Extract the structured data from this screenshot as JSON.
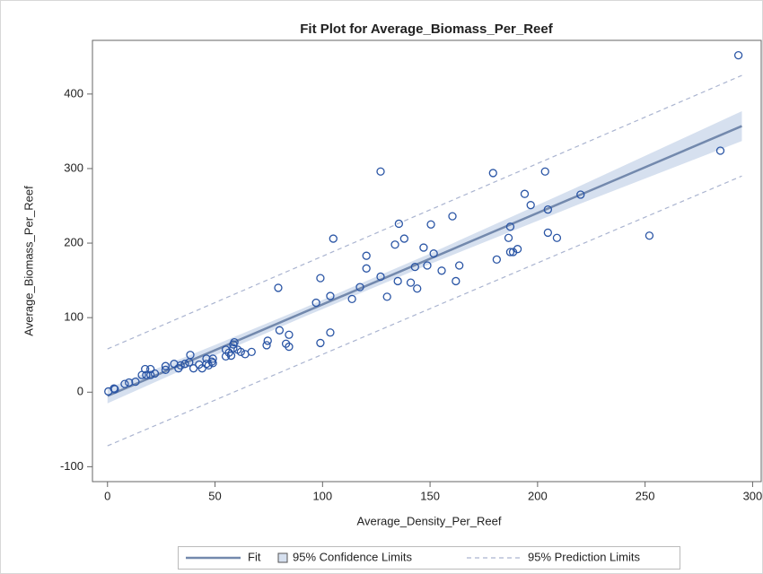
{
  "chart_data": {
    "type": "scatter",
    "title": "Fit Plot for Average_Biomass_Per_Reef",
    "x_label": "Average_Density_Per_Reef",
    "y_label": "Average_Biomass_Per_Reef",
    "xlim": [
      -7,
      304
    ],
    "ylim": [
      -120,
      472
    ],
    "xticks": [
      0,
      50,
      100,
      150,
      200,
      250,
      300
    ],
    "yticks": [
      -100,
      0,
      100,
      200,
      300,
      400
    ],
    "points": {
      "color": "#2a55a5",
      "x": [
        0.4,
        3,
        3.4,
        8,
        10,
        13,
        16,
        17.5,
        20,
        18,
        20,
        22,
        27,
        27,
        31,
        33,
        34,
        36,
        38,
        38.5,
        40,
        42.6,
        44,
        46,
        46,
        47,
        48.5,
        49,
        49,
        55,
        55,
        56.5,
        57.5,
        58.5,
        58.5,
        59,
        60.5,
        62,
        64,
        67,
        74,
        74.5,
        79.4,
        80,
        83,
        84.4,
        84.4,
        97,
        99,
        99,
        103.6,
        103.6,
        105,
        113.7,
        117.4,
        120.4,
        120.4,
        127,
        127,
        130,
        133.7,
        135.5,
        138,
        135,
        141,
        144,
        143,
        147,
        148.7,
        150.4,
        151.7,
        155.4,
        160.4,
        162,
        163.6,
        179.3,
        181,
        186.5,
        187.3,
        187.3,
        188.6,
        190.7,
        194,
        196.8,
        203.5,
        204.8,
        204.8,
        209,
        220,
        252,
        285,
        293.4
      ],
      "y": [
        1,
        5,
        4,
        11,
        13,
        14,
        23,
        31,
        31,
        23,
        23,
        25,
        30,
        35,
        38,
        32,
        36,
        38,
        40,
        50,
        32,
        37,
        32,
        38,
        45,
        36,
        41,
        45,
        39,
        57,
        48,
        53,
        49,
        64,
        59,
        67,
        57,
        54,
        51,
        54,
        63,
        69,
        140,
        83,
        65,
        77,
        61,
        120,
        153,
        66,
        129,
        80,
        206,
        125,
        141,
        166,
        183,
        296,
        155,
        128,
        198,
        226,
        206,
        149,
        147,
        139,
        168,
        194,
        170,
        225,
        186,
        163,
        236,
        149,
        170,
        294,
        178,
        207,
        222,
        188,
        188,
        192,
        266,
        251,
        296,
        245,
        214,
        207,
        265,
        210,
        324,
        452
      ]
    },
    "fit": {
      "name": "Fit",
      "color": "#7389ad",
      "x": [
        0,
        295
      ],
      "values": [
        -5,
        357
      ]
    },
    "confidence": {
      "name": "95% Confidence Limits",
      "color": "#d6e0ef",
      "x": [
        0,
        50,
        90,
        150,
        220,
        295
      ],
      "lower": [
        -15,
        49.4,
        99.4,
        172,
        253,
        337
      ],
      "upper": [
        5,
        63.4,
        111.4,
        186,
        277,
        377
      ]
    },
    "prediction": {
      "name": "95% Prediction Limits",
      "color": "#aab4d0",
      "x": [
        0,
        295
      ],
      "lower": [
        -72,
        290
      ],
      "upper": [
        58,
        425
      ]
    }
  }
}
